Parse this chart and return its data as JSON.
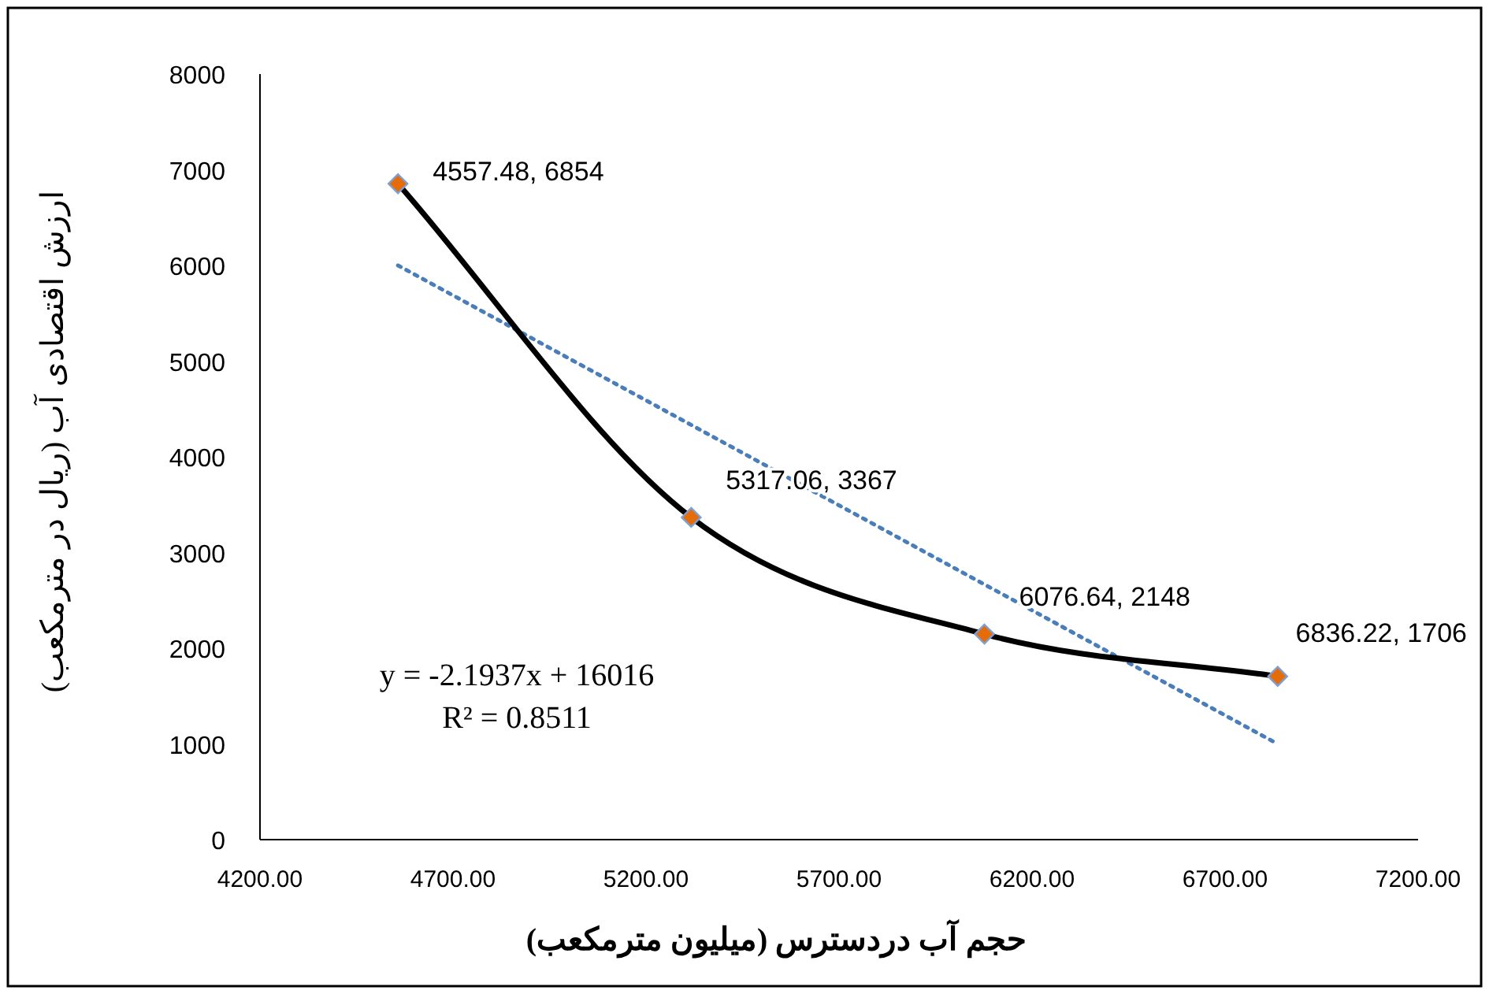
{
  "chart_data": {
    "type": "scatter",
    "xlabel": "حجم آب دردسترس (میلیون مترمکعب)",
    "ylabel": "ارزش اقتصادی آب (ریال در مترمکعب)",
    "xlim": [
      4200,
      7200
    ],
    "xticks": [
      {
        "value": 4200,
        "label": "4200.00"
      },
      {
        "value": 4700,
        "label": "4700.00"
      },
      {
        "value": 5200,
        "label": "5200.00"
      },
      {
        "value": 5700,
        "label": "5700.00"
      },
      {
        "value": 6200,
        "label": "6200.00"
      },
      {
        "value": 6700,
        "label": "6700.00"
      },
      {
        "value": 7200,
        "label": "7200.00"
      }
    ],
    "ylim": [
      0,
      8000
    ],
    "yticks": [
      0,
      1000,
      2000,
      3000,
      4000,
      5000,
      6000,
      7000,
      8000
    ],
    "grid": false,
    "series": [
      {
        "type": "line",
        "color": "#000000",
        "colors": [
          "#e46c0a",
          "#e46c0a",
          "#e46c0a",
          "#e46c0a"
        ],
        "marker": "diamond",
        "line_style": "solid",
        "x": [
          4557.48,
          5317.06,
          6076.64,
          6836.22
        ],
        "values": [
          6854,
          3367,
          2148,
          1706
        ],
        "value_labels": [
          "4557.48, 6854",
          "5317.06, 3367",
          "6076.64, 2148",
          "6836.22, 1706"
        ]
      },
      {
        "type": "line",
        "color": "#4a7ebb",
        "marker": "none",
        "line_style": "dotted",
        "x": [
          4557.48,
          6836.22
        ],
        "values": [
          6000,
          1000
        ]
      }
    ],
    "annotations": [
      "y = -2.1937x + 16016",
      "R² = 0.8511"
    ]
  }
}
